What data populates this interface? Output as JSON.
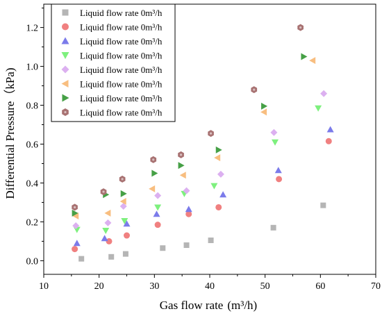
{
  "chart_data": {
    "type": "scatter",
    "xlabel": "Gas flow rate",
    "xlabel_unit": "(m³/h)",
    "ylabel": "Differential Pressure（kPa)",
    "xlim": [
      10,
      70
    ],
    "ylim": [
      -0.07,
      1.32
    ],
    "xticks": [
      "10",
      "20",
      "30",
      "40",
      "50",
      "60",
      "70"
    ],
    "yticks": [
      "0.0",
      "0.2",
      "0.4",
      "0.6",
      "0.8",
      "1.0",
      "1.2"
    ],
    "legend_position": "top-left",
    "grid": false,
    "series": [
      {
        "name": "Liquid flow rate 0m³/h",
        "marker": "square",
        "color": "#b5b5b5",
        "points": [
          [
            16.8,
            0.01
          ],
          [
            22.2,
            0.02
          ],
          [
            24.8,
            0.035
          ],
          [
            31.5,
            0.065
          ],
          [
            35.8,
            0.08
          ],
          [
            40.2,
            0.105
          ],
          [
            51.5,
            0.17
          ],
          [
            60.5,
            0.285
          ]
        ]
      },
      {
        "name": "Liquid flow rate 0m³/h",
        "marker": "circle",
        "color": "#f08080",
        "points": [
          [
            15.6,
            0.06
          ],
          [
            21.8,
            0.1
          ],
          [
            25.0,
            0.13
          ],
          [
            30.6,
            0.185
          ],
          [
            36.2,
            0.24
          ],
          [
            41.6,
            0.275
          ],
          [
            52.5,
            0.42
          ],
          [
            61.5,
            0.615
          ]
        ]
      },
      {
        "name": "Liquid flow rate 0m³/h",
        "marker": "triangle-up",
        "color": "#7b7bea",
        "points": [
          [
            16.0,
            0.09
          ],
          [
            21.0,
            0.115
          ],
          [
            25.0,
            0.19
          ],
          [
            30.4,
            0.24
          ],
          [
            36.2,
            0.265
          ],
          [
            42.4,
            0.34
          ],
          [
            52.4,
            0.465
          ],
          [
            61.8,
            0.675
          ]
        ]
      },
      {
        "name": "Liquid flow rate 0m³/h",
        "marker": "triangle-down",
        "color": "#7ef07e",
        "points": [
          [
            16.0,
            0.16
          ],
          [
            21.2,
            0.155
          ],
          [
            24.6,
            0.205
          ],
          [
            30.6,
            0.275
          ],
          [
            35.4,
            0.345
          ],
          [
            40.8,
            0.385
          ],
          [
            51.8,
            0.61
          ],
          [
            59.6,
            0.785
          ]
        ]
      },
      {
        "name": "Liquid flow rate 0m³/h",
        "marker": "diamond",
        "color": "#dcb0f0",
        "points": [
          [
            15.8,
            0.18
          ],
          [
            21.6,
            0.195
          ],
          [
            24.4,
            0.28
          ],
          [
            30.6,
            0.335
          ],
          [
            35.8,
            0.36
          ],
          [
            42.0,
            0.445
          ],
          [
            51.6,
            0.66
          ],
          [
            60.6,
            0.86
          ]
        ]
      },
      {
        "name": "Liquid flow rate 0m³/h",
        "marker": "triangle-left",
        "color": "#f8be80",
        "points": [
          [
            15.8,
            0.23
          ],
          [
            21.6,
            0.245
          ],
          [
            24.4,
            0.305
          ],
          [
            29.6,
            0.37
          ],
          [
            35.2,
            0.44
          ],
          [
            41.4,
            0.53
          ],
          [
            49.8,
            0.765
          ],
          [
            58.6,
            1.03
          ]
        ]
      },
      {
        "name": "Liquid flow rate 0m³/h",
        "marker": "triangle-right",
        "color": "#46a046",
        "points": [
          [
            15.6,
            0.245
          ],
          [
            21.2,
            0.34
          ],
          [
            24.4,
            0.345
          ],
          [
            30.0,
            0.45
          ],
          [
            34.8,
            0.49
          ],
          [
            41.6,
            0.57
          ],
          [
            49.8,
            0.795
          ],
          [
            57.0,
            1.05
          ]
        ]
      },
      {
        "name": "Liquid flow rate 0m³/h",
        "marker": "hexagon",
        "color": "#a87272",
        "points": [
          [
            15.6,
            0.275
          ],
          [
            20.8,
            0.355
          ],
          [
            24.2,
            0.42
          ],
          [
            29.8,
            0.52
          ],
          [
            34.8,
            0.545
          ],
          [
            40.2,
            0.655
          ],
          [
            48.0,
            0.88
          ],
          [
            56.4,
            1.2
          ]
        ]
      }
    ]
  }
}
